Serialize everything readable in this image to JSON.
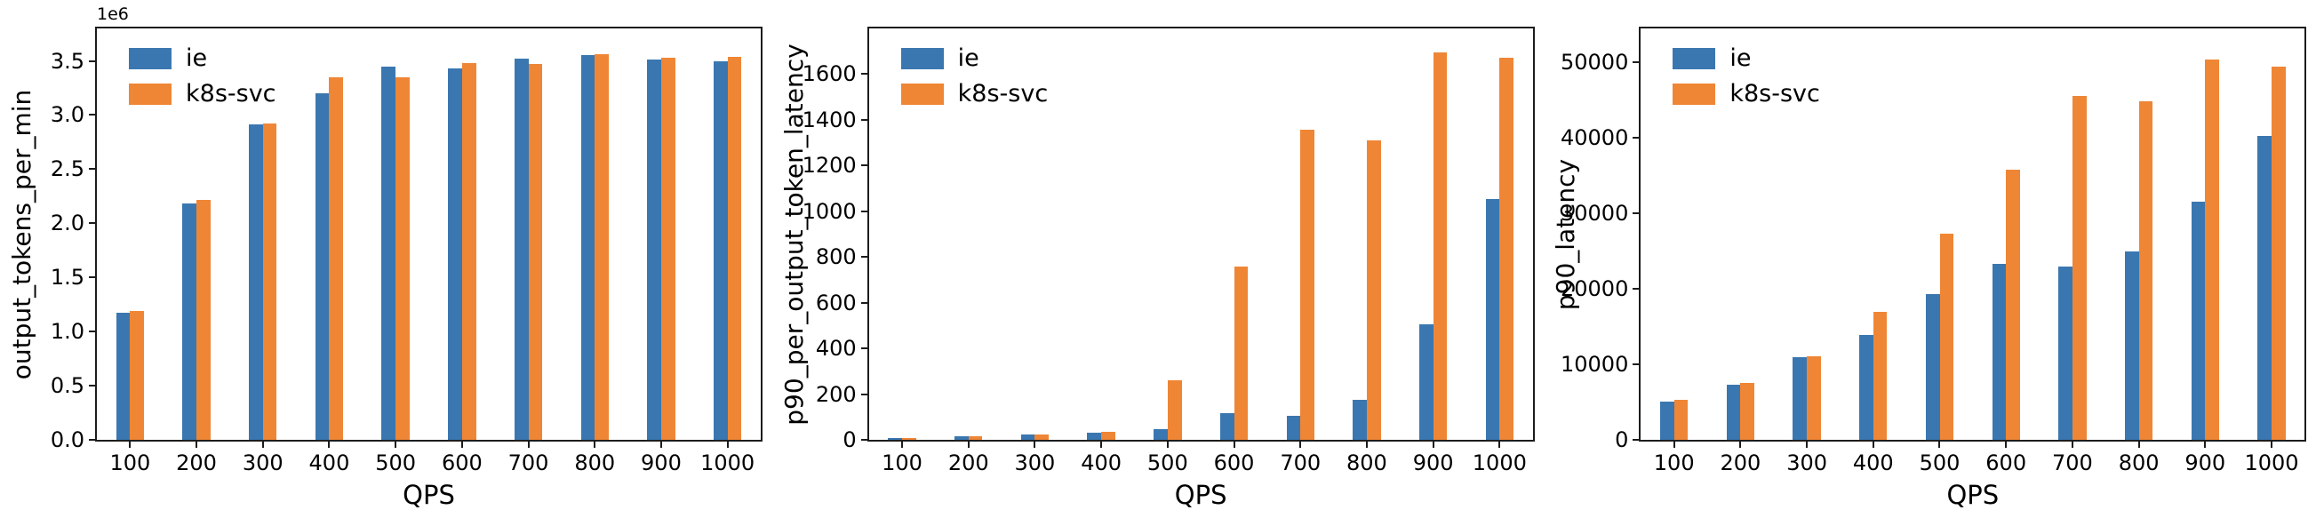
{
  "figure": {
    "background": "#ffffff",
    "axis_color": "#1c1c1c",
    "text_color": "#000000"
  },
  "legend": {
    "position": "upper left",
    "items": [
      {
        "label": "ie",
        "color": "#3a77b0"
      },
      {
        "label": "k8s-svc",
        "color": "#ef8636"
      }
    ]
  },
  "chart_data": [
    {
      "type": "bar",
      "title": "",
      "ylabel": "output_tokens_per_min",
      "xlabel": "QPS",
      "offset_text": "1e6",
      "grid": false,
      "legend_position": "upper left",
      "categories": [
        "100",
        "200",
        "300",
        "400",
        "500",
        "600",
        "700",
        "800",
        "900",
        "1000"
      ],
      "ylim": [
        0,
        3800000
      ],
      "yticks": [
        {
          "v": 0,
          "label": "0.0"
        },
        {
          "v": 500000,
          "label": "0.5"
        },
        {
          "v": 1000000,
          "label": "1.0"
        },
        {
          "v": 1500000,
          "label": "1.5"
        },
        {
          "v": 2000000,
          "label": "2.0"
        },
        {
          "v": 2500000,
          "label": "2.5"
        },
        {
          "v": 3000000,
          "label": "3.0"
        },
        {
          "v": 3500000,
          "label": "3.5"
        }
      ],
      "series": [
        {
          "name": "ie",
          "color": "#3a77b0",
          "values": [
            1170000,
            2180000,
            2910000,
            3200000,
            3450000,
            3430000,
            3520000,
            3550000,
            3510000,
            3500000
          ]
        },
        {
          "name": "k8s-svc",
          "color": "#ef8636",
          "values": [
            1190000,
            2220000,
            2920000,
            3350000,
            3350000,
            3480000,
            3470000,
            3560000,
            3530000,
            3540000
          ]
        }
      ]
    },
    {
      "type": "bar",
      "title": "",
      "ylabel": "p90_per_output_token_latency",
      "xlabel": "QPS",
      "offset_text": "",
      "grid": false,
      "legend_position": "upper left",
      "categories": [
        "100",
        "200",
        "300",
        "400",
        "500",
        "600",
        "700",
        "800",
        "900",
        "1000"
      ],
      "ylim": [
        0,
        1800
      ],
      "yticks": [
        {
          "v": 0,
          "label": "0"
        },
        {
          "v": 200,
          "label": "200"
        },
        {
          "v": 400,
          "label": "400"
        },
        {
          "v": 600,
          "label": "600"
        },
        {
          "v": 800,
          "label": "800"
        },
        {
          "v": 1000,
          "label": "1000"
        },
        {
          "v": 1200,
          "label": "1200"
        },
        {
          "v": 1400,
          "label": "1400"
        },
        {
          "v": 1600,
          "label": "1600"
        }
      ],
      "series": [
        {
          "name": "ie",
          "color": "#3a77b0",
          "values": [
            8,
            15,
            22,
            31,
            46,
            115,
            105,
            175,
            505,
            1055
          ]
        },
        {
          "name": "k8s-svc",
          "color": "#ef8636",
          "values": [
            9,
            16,
            23,
            35,
            260,
            760,
            1355,
            1310,
            1695,
            1670
          ]
        }
      ]
    },
    {
      "type": "bar",
      "title": "",
      "ylabel": "p90_latency",
      "xlabel": "QPS",
      "offset_text": "",
      "grid": false,
      "legend_position": "upper left",
      "categories": [
        "100",
        "200",
        "300",
        "400",
        "500",
        "600",
        "700",
        "800",
        "900",
        "1000"
      ],
      "ylim": [
        0,
        54500
      ],
      "yticks": [
        {
          "v": 0,
          "label": "0"
        },
        {
          "v": 10000,
          "label": "10000"
        },
        {
          "v": 20000,
          "label": "20000"
        },
        {
          "v": 30000,
          "label": "30000"
        },
        {
          "v": 40000,
          "label": "40000"
        },
        {
          "v": 50000,
          "label": "50000"
        }
      ],
      "series": [
        {
          "name": "ie",
          "color": "#3a77b0",
          "values": [
            5100,
            7300,
            10900,
            13900,
            19300,
            23300,
            22900,
            24900,
            31500,
            40300
          ]
        },
        {
          "name": "k8s-svc",
          "color": "#ef8636",
          "values": [
            5300,
            7500,
            11100,
            16900,
            27300,
            35800,
            45500,
            44900,
            50400,
            49400
          ]
        }
      ]
    }
  ]
}
